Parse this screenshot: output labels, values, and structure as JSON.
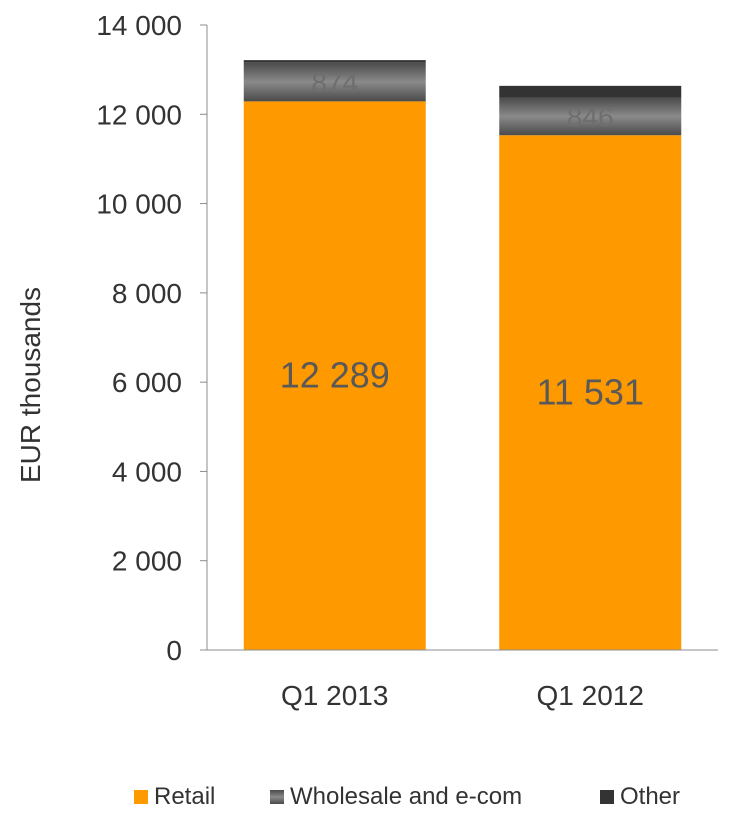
{
  "chart_data": {
    "type": "bar",
    "stacked": true,
    "categories": [
      "Q1 2013",
      "Q1 2012"
    ],
    "series": [
      {
        "name": "Retail",
        "values": [
          12289,
          11531
        ],
        "color": "#FF9900",
        "labels": [
          "12 289",
          "11 531"
        ]
      },
      {
        "name": "Wholesale and e-com",
        "values": [
          874,
          846
        ],
        "color": "#6B6B6B",
        "labels": [
          "874",
          "846"
        ]
      },
      {
        "name": "Other",
        "values": [
          50,
          260
        ],
        "color": "#333333"
      }
    ],
    "ylabel": "EUR thousands",
    "ylim": [
      0,
      14000
    ],
    "yticks": [
      0,
      2000,
      4000,
      6000,
      8000,
      10000,
      12000,
      14000
    ],
    "ytick_labels": [
      "0",
      "2 000",
      "4 000",
      "6 000",
      "8 000",
      "10 000",
      "12 000",
      "14 000"
    ],
    "grid": false,
    "legend_position": "bottom"
  }
}
